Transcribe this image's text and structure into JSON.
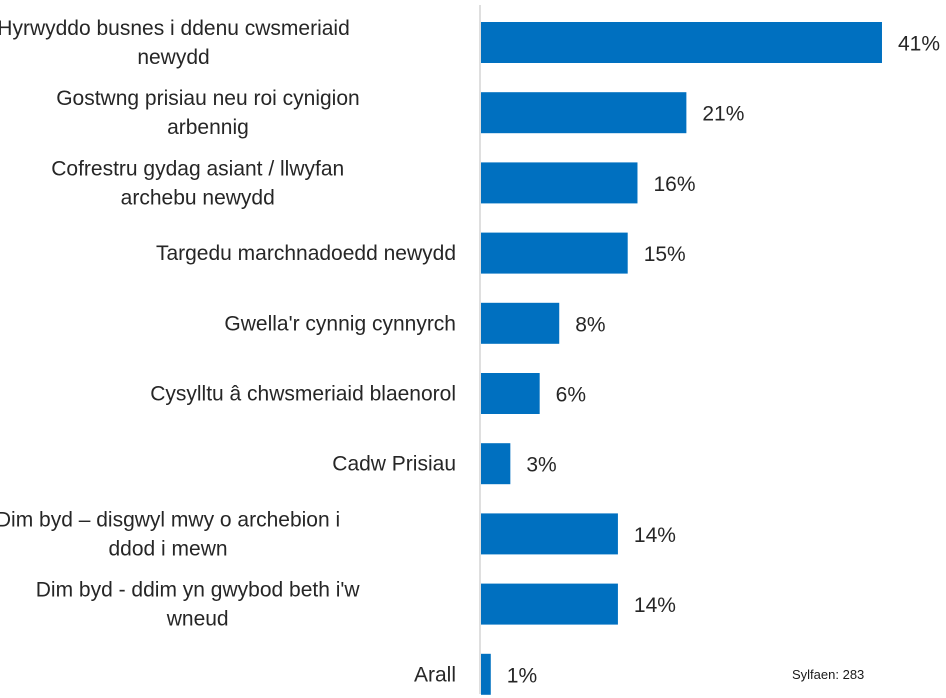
{
  "chart_data": {
    "type": "bar",
    "orientation": "horizontal",
    "categories": [
      [
        "Hyrwyddo busnes i ddenu cwsmeriaid",
        "newydd"
      ],
      [
        "Gostwng prisiau neu roi cynigion",
        "arbennig"
      ],
      [
        "Cofrestru gydag asiant / llwyfan",
        "archebu newydd"
      ],
      [
        "Targedu marchnadoedd newydd"
      ],
      [
        "Gwella'r cynnig cynnyrch"
      ],
      [
        "Cysylltu â chwsmeriaid blaenorol"
      ],
      [
        "Cadw Prisiau"
      ],
      [
        "Dim byd – disgwyl mwy o archebion i",
        "ddod i mewn"
      ],
      [
        "Dim byd - ddim yn gwybod beth i'w",
        "wneud"
      ],
      [
        "Arall"
      ]
    ],
    "values": [
      41,
      21,
      16,
      15,
      8,
      6,
      3,
      14,
      14,
      1
    ],
    "value_labels": [
      "41%",
      "21%",
      "16%",
      "15%",
      "8%",
      "6%",
      "3%",
      "14%",
      "14%",
      "1%"
    ],
    "unit": "%",
    "xlim": [
      0,
      45
    ],
    "bar_color": "#0070C0",
    "axis_color": "#bfbfbf",
    "title": "",
    "xlabel": "",
    "ylabel": "",
    "grid": false,
    "legend": "none"
  },
  "footnote": "Sylfaen: 283"
}
